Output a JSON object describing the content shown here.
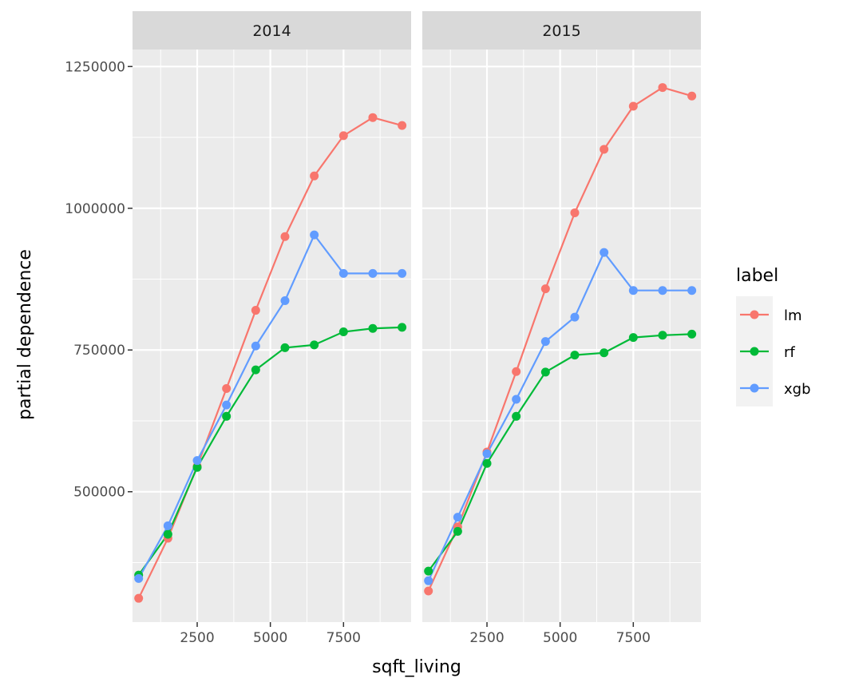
{
  "chart_data": {
    "type": "line",
    "title": "",
    "xlabel": "sqft_living",
    "ylabel": "partial dependence",
    "xlim": [
      290,
      9810
    ],
    "ylim": [
      270000,
      1280000
    ],
    "x_ticks": [
      2500,
      5000,
      7500
    ],
    "x_tick_labels": [
      "2500",
      "5000",
      "7500"
    ],
    "y_ticks": [
      500000,
      750000,
      1000000,
      1250000
    ],
    "y_tick_labels": [
      "500000",
      "750000",
      "1000000",
      "1250000"
    ],
    "grid": true,
    "legend": {
      "title": "label",
      "placement": "right",
      "entries": [
        "lm",
        "rf",
        "xgb"
      ]
    },
    "colors": {
      "lm": "#F8766D",
      "rf": "#00BA38",
      "xgb": "#619CFF",
      "panel_bg": "#EBEBEB",
      "strip_bg": "#D9D9D9",
      "grid": "#FFFFFF"
    },
    "panels": [
      {
        "strip": "2014",
        "x": [
          500,
          1500,
          2500,
          3500,
          4500,
          5500,
          6500,
          7500,
          8500,
          9500
        ],
        "series": [
          {
            "name": "lm",
            "values": [
              312000,
              418000,
              545000,
              682000,
              820000,
              950000,
              1057000,
              1128000,
              1160000,
              1146000
            ]
          },
          {
            "name": "rf",
            "values": [
              353000,
              425000,
              543000,
              633000,
              715000,
              754000,
              759000,
              782000,
              788000,
              790000
            ]
          },
          {
            "name": "xgb",
            "values": [
              347000,
              440000,
              555000,
              653000,
              757000,
              837000,
              953000,
              885000,
              885000,
              885000
            ]
          }
        ]
      },
      {
        "strip": "2015",
        "x": [
          500,
          1500,
          2500,
          3500,
          4500,
          5500,
          6500,
          7500,
          8500,
          9500
        ],
        "series": [
          {
            "name": "lm",
            "values": [
              325000,
              438000,
              570000,
              712000,
              858000,
              992000,
              1104000,
              1180000,
              1213000,
              1198000
            ]
          },
          {
            "name": "rf",
            "values": [
              360000,
              430000,
              550000,
              633000,
              711000,
              741000,
              745000,
              772000,
              776000,
              778000
            ]
          },
          {
            "name": "xgb",
            "values": [
              343000,
              455000,
              567000,
              663000,
              765000,
              808000,
              922000,
              855000,
              855000,
              855000
            ]
          }
        ]
      }
    ]
  }
}
